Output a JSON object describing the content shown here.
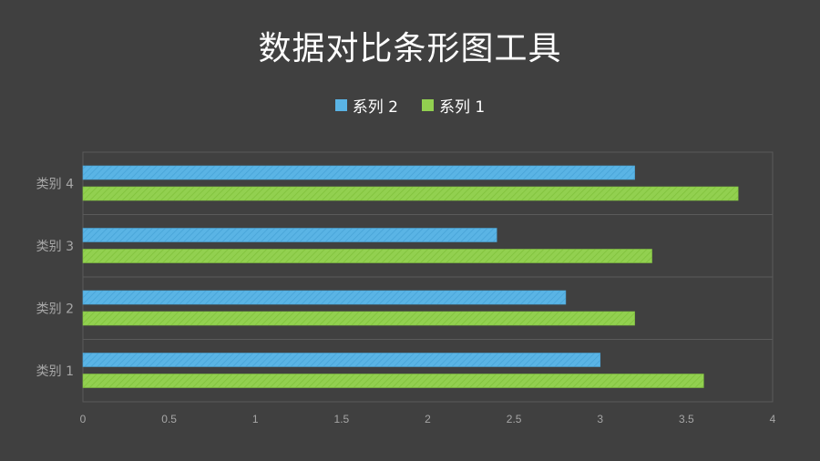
{
  "chart_data": {
    "type": "bar",
    "orientation": "horizontal",
    "title": "数据对比条形图工具",
    "categories": [
      "类别 1",
      "类别 2",
      "类别 3",
      "类别 4"
    ],
    "series": [
      {
        "name": "系列 1",
        "values": [
          3.6,
          3.2,
          3.3,
          3.8
        ],
        "color": "#92d050"
      },
      {
        "name": "系列 2",
        "values": [
          3.0,
          2.8,
          2.4,
          3.2
        ],
        "color": "#5ab4e5"
      }
    ],
    "legend_order": [
      "系列 2",
      "系列 1"
    ],
    "legend_position": "top",
    "xlim": [
      0,
      4
    ],
    "xticks": [
      "0",
      "0.5",
      "1",
      "1.5",
      "2",
      "2.5",
      "3",
      "3.5",
      "4"
    ],
    "grid": true,
    "background": "#404040"
  }
}
